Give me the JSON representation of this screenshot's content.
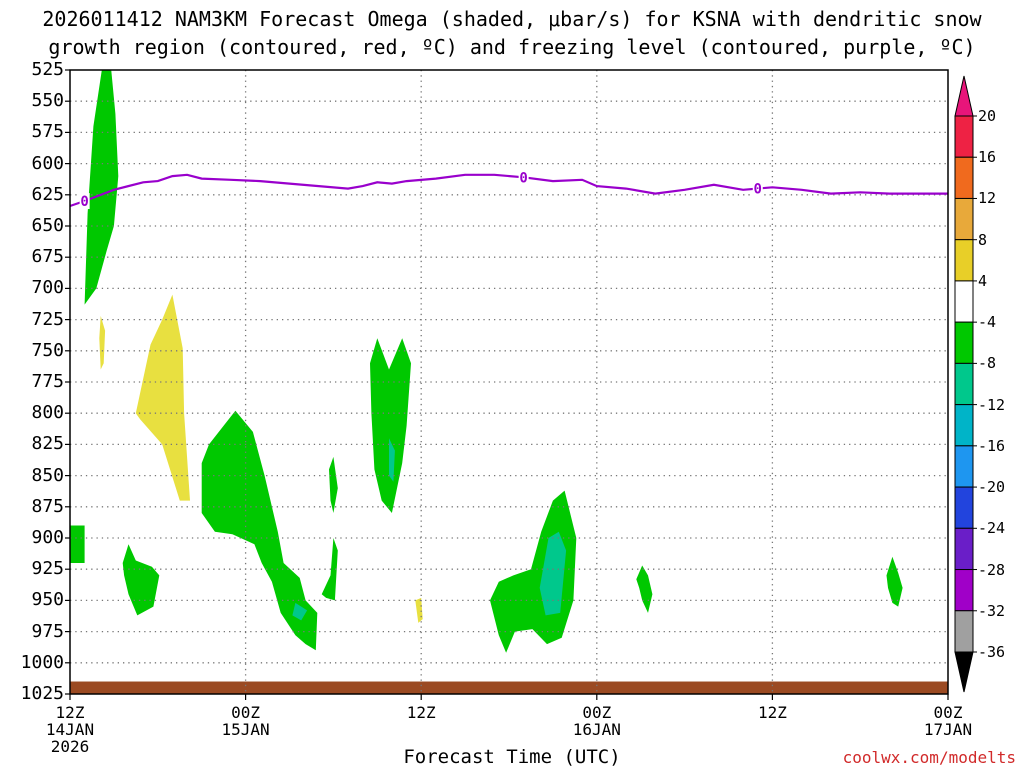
{
  "chart_data": {
    "type": "heatmap",
    "title_line1": "2026011412 NAM3KM Forecast Omega (shaded, μbar/s) for KSNA with dendritic snow",
    "title_line2": "growth region (contoured, red, ºC) and freezing level (contoured, purple, ºC)",
    "xlabel": "Forecast Time (UTC)",
    "credit": "coolwx.com/modelts",
    "y_ticks": [
      525,
      550,
      575,
      600,
      625,
      650,
      675,
      700,
      725,
      750,
      775,
      800,
      825,
      850,
      875,
      900,
      925,
      950,
      975,
      1000,
      1025
    ],
    "ylim": [
      525,
      1025
    ],
    "x_ticks": [
      {
        "hour": 0,
        "line1": "12Z",
        "line2": "14JAN",
        "line3": "2026"
      },
      {
        "hour": 12,
        "line1": "00Z",
        "line2": "15JAN",
        "line3": ""
      },
      {
        "hour": 24,
        "line1": "12Z",
        "line2": "",
        "line3": ""
      },
      {
        "hour": 36,
        "line1": "00Z",
        "line2": "16JAN",
        "line3": ""
      },
      {
        "hour": 48,
        "line1": "12Z",
        "line2": "",
        "line3": ""
      },
      {
        "hour": 60,
        "line1": "00Z",
        "line2": "17JAN",
        "line3": ""
      }
    ],
    "xlim": [
      0,
      60
    ],
    "grid": true,
    "colorbar": {
      "labels": [
        20,
        16,
        12,
        8,
        4,
        -4,
        -8,
        -12,
        -16,
        -20,
        -24,
        -28,
        -32,
        -36
      ],
      "colors": [
        "#ee2244",
        "#f06a1e",
        "#e8a93a",
        "#e8cf28",
        "#ffffff",
        "#00c800",
        "#00c88c",
        "#00b4c8",
        "#1e96f0",
        "#2244dd",
        "#6a1ec8",
        "#a000c8",
        "#a0a0a0"
      ],
      "top_arrow_color": "#e8157a",
      "bottom_arrow_color": "#000000"
    },
    "freezing_level": {
      "label": "0",
      "color": "#9900cc",
      "points": [
        [
          0,
          634
        ],
        [
          1,
          630
        ],
        [
          3,
          621
        ],
        [
          5,
          615
        ],
        [
          6,
          614
        ],
        [
          7,
          610
        ],
        [
          8,
          609
        ],
        [
          9,
          612
        ],
        [
          11,
          613
        ],
        [
          13,
          614
        ],
        [
          15,
          616
        ],
        [
          17,
          618
        ],
        [
          19,
          620
        ],
        [
          20,
          618
        ],
        [
          21,
          615
        ],
        [
          22,
          616
        ],
        [
          23,
          614
        ],
        [
          25,
          612
        ],
        [
          27,
          609
        ],
        [
          29,
          609
        ],
        [
          31,
          611
        ],
        [
          33,
          614
        ],
        [
          35,
          613
        ],
        [
          36,
          618
        ],
        [
          38,
          620
        ],
        [
          40,
          624
        ],
        [
          42,
          621
        ],
        [
          44,
          617
        ],
        [
          46,
          621
        ],
        [
          48,
          619
        ],
        [
          50,
          621
        ],
        [
          52,
          624
        ],
        [
          54,
          623
        ],
        [
          56,
          624
        ],
        [
          58,
          624
        ],
        [
          60,
          624
        ]
      ],
      "label_hours": [
        1,
        31,
        47
      ]
    },
    "terrain": {
      "color": "#9b4a22",
      "pressure": 1015
    },
    "omega_regions": [
      {
        "value": -6,
        "color": "#00c800",
        "points": [
          [
            1,
            713
          ],
          [
            1.2,
            640
          ],
          [
            1.6,
            570
          ],
          [
            2.2,
            523
          ],
          [
            2.8,
            523
          ],
          [
            3.1,
            560
          ],
          [
            3.3,
            610
          ],
          [
            3.0,
            650
          ],
          [
            2.5,
            670
          ],
          [
            1.8,
            700
          ]
        ]
      },
      {
        "value": -6,
        "color": "#00c800",
        "points": [
          [
            0,
            890
          ],
          [
            1,
            890
          ],
          [
            1,
            920
          ],
          [
            0,
            920
          ]
        ]
      },
      {
        "value": 6,
        "color": "#e8e040",
        "points": [
          [
            2.1,
            722
          ],
          [
            2.4,
            734
          ],
          [
            2.3,
            760
          ],
          [
            2.1,
            765
          ],
          [
            2.0,
            740
          ]
        ]
      },
      {
        "value": 6,
        "color": "#e8e040",
        "points": [
          [
            4.5,
            800
          ],
          [
            5.5,
            745
          ],
          [
            6.3,
            725
          ],
          [
            7.0,
            705
          ],
          [
            7.7,
            748
          ],
          [
            7.8,
            800
          ],
          [
            8.2,
            870
          ],
          [
            7.5,
            870
          ],
          [
            6.3,
            825
          ],
          [
            4.8,
            805
          ]
        ]
      },
      {
        "value": -6,
        "color": "#00c800",
        "points": [
          [
            3.6,
            920
          ],
          [
            4.0,
            905
          ],
          [
            4.5,
            918
          ],
          [
            5.6,
            923
          ],
          [
            6.1,
            930
          ],
          [
            5.7,
            955
          ],
          [
            4.6,
            962
          ],
          [
            4.0,
            945
          ],
          [
            3.7,
            930
          ]
        ]
      },
      {
        "value": -6,
        "color": "#00c800",
        "points": [
          [
            9.0,
            840
          ],
          [
            9.5,
            825
          ],
          [
            10.5,
            810
          ],
          [
            11.3,
            798
          ],
          [
            12.5,
            815
          ],
          [
            13.3,
            850
          ],
          [
            14.2,
            895
          ],
          [
            14.6,
            920
          ],
          [
            15.7,
            932
          ],
          [
            16.1,
            950
          ],
          [
            16.9,
            960
          ],
          [
            16.8,
            990
          ],
          [
            16.1,
            985
          ],
          [
            15.4,
            978
          ],
          [
            14.4,
            960
          ],
          [
            13.8,
            935
          ],
          [
            13.1,
            920
          ],
          [
            12.6,
            905
          ],
          [
            11.1,
            897
          ],
          [
            9.9,
            895
          ],
          [
            9.0,
            880
          ]
        ]
      },
      {
        "value": -10,
        "color": "#00c88c",
        "points": [
          [
            15.4,
            952
          ],
          [
            16.2,
            958
          ],
          [
            15.8,
            966
          ],
          [
            15.2,
            962
          ]
        ]
      },
      {
        "value": -6,
        "color": "#00c800",
        "points": [
          [
            17.7,
            845
          ],
          [
            18.0,
            835
          ],
          [
            18.3,
            860
          ],
          [
            18.0,
            880
          ],
          [
            17.8,
            870
          ]
        ]
      },
      {
        "value": -6,
        "color": "#00c800",
        "points": [
          [
            17.2,
            945
          ],
          [
            17.8,
            930
          ],
          [
            18.0,
            900
          ],
          [
            18.3,
            910
          ],
          [
            18.1,
            950
          ],
          [
            17.5,
            948
          ]
        ]
      },
      {
        "value": -6,
        "color": "#00c800",
        "points": [
          [
            20.5,
            760
          ],
          [
            21.0,
            740
          ],
          [
            21.8,
            765
          ],
          [
            22.7,
            740
          ],
          [
            23.3,
            760
          ],
          [
            23.0,
            810
          ],
          [
            22.7,
            840
          ],
          [
            22.0,
            880
          ],
          [
            21.3,
            870
          ],
          [
            20.8,
            845
          ],
          [
            20.6,
            800
          ]
        ]
      },
      {
        "value": -10,
        "color": "#00c88c",
        "points": [
          [
            21.8,
            820
          ],
          [
            22.2,
            830
          ],
          [
            22.1,
            855
          ],
          [
            21.8,
            850
          ]
        ]
      },
      {
        "value": 6,
        "color": "#e8e040",
        "points": [
          [
            23.6,
            950
          ],
          [
            24.0,
            948
          ],
          [
            24.1,
            965
          ],
          [
            23.8,
            968
          ]
        ]
      },
      {
        "value": -6,
        "color": "#00c800",
        "points": [
          [
            28.7,
            950
          ],
          [
            29.3,
            935
          ],
          [
            30.3,
            930
          ],
          [
            31.5,
            925
          ],
          [
            32.2,
            895
          ],
          [
            33.0,
            870
          ],
          [
            33.8,
            862
          ],
          [
            34.6,
            900
          ],
          [
            34.4,
            950
          ],
          [
            33.6,
            980
          ],
          [
            32.6,
            985
          ],
          [
            31.6,
            973
          ],
          [
            30.4,
            975
          ],
          [
            29.8,
            992
          ],
          [
            29.3,
            978
          ]
        ]
      },
      {
        "value": -10,
        "color": "#00c88c",
        "points": [
          [
            32.1,
            940
          ],
          [
            32.7,
            900
          ],
          [
            33.4,
            895
          ],
          [
            33.9,
            910
          ],
          [
            33.5,
            960
          ],
          [
            32.5,
            962
          ]
        ]
      },
      {
        "value": -6,
        "color": "#00c800",
        "points": [
          [
            38.7,
            933
          ],
          [
            39.1,
            922
          ],
          [
            39.5,
            930
          ],
          [
            39.8,
            945
          ],
          [
            39.5,
            960
          ],
          [
            39.1,
            950
          ],
          [
            38.9,
            940
          ]
        ]
      },
      {
        "value": -6,
        "color": "#00c800",
        "points": [
          [
            55.8,
            930
          ],
          [
            56.2,
            915
          ],
          [
            56.6,
            928
          ],
          [
            56.9,
            940
          ],
          [
            56.6,
            955
          ],
          [
            56.2,
            952
          ],
          [
            55.9,
            940
          ]
        ]
      }
    ]
  }
}
